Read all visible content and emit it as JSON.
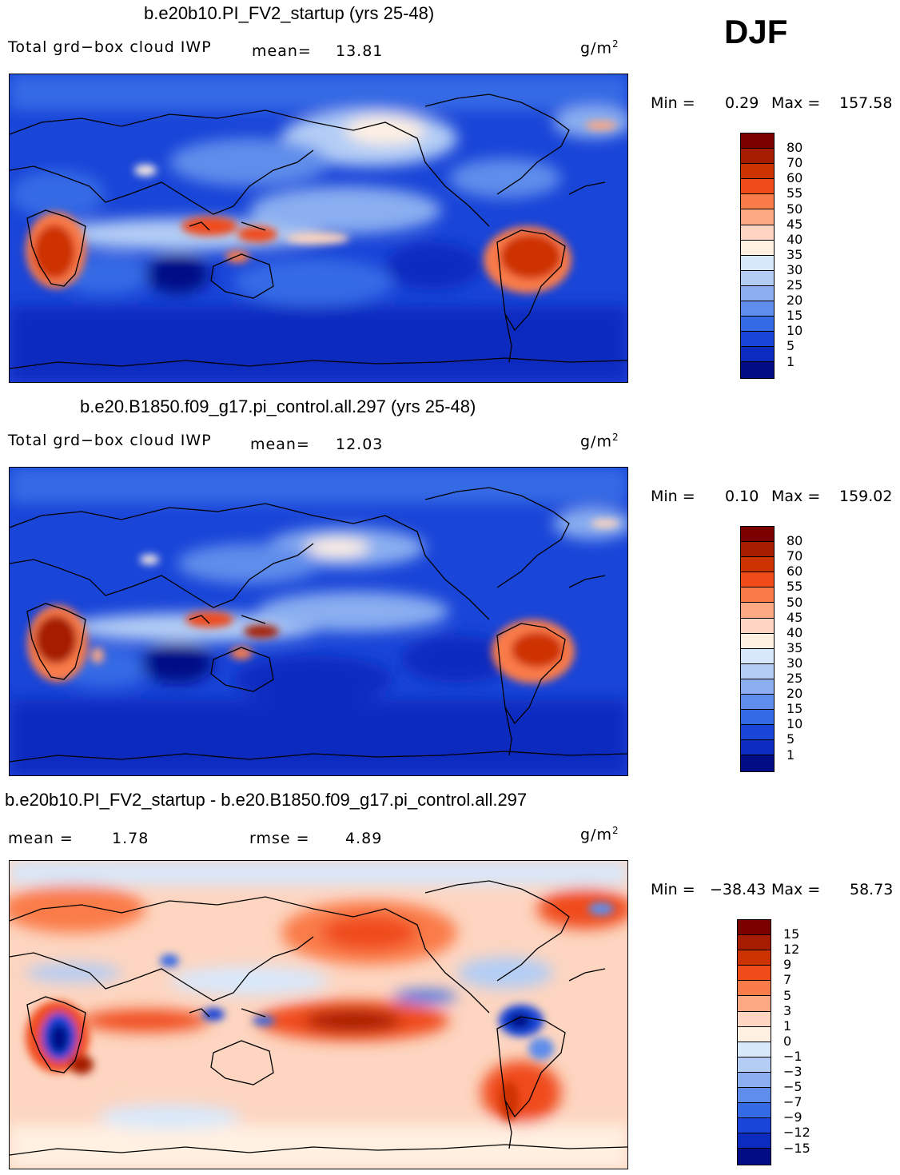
{
  "season": "DJF",
  "panels": [
    {
      "title": "b.e20b10.PI_FV2_startup (yrs 25-48)",
      "variable": "Total grd−box cloud IWP",
      "mean_label": "mean=",
      "mean_value": "13.81",
      "units_base": "g/m",
      "units_exp": "2",
      "min_label": "Min =",
      "min_value": "0.29",
      "max_label": "Max =",
      "max_value": "157.58",
      "colorbar": {
        "colors": [
          "#7a0000",
          "#a61c00",
          "#cd3300",
          "#f04c1a",
          "#fa7b4a",
          "#fca883",
          "#fdd5c0",
          "#fff0e2",
          "#d8e8fb",
          "#b3cdf5",
          "#8aaef0",
          "#5e8deb",
          "#356ae5",
          "#1945d8",
          "#0b2cbf",
          "#020c85"
        ],
        "labels": [
          "80",
          "70",
          "60",
          "55",
          "50",
          "45",
          "40",
          "35",
          "30",
          "25",
          "20",
          "15",
          "10",
          "5",
          "1"
        ]
      }
    },
    {
      "title": "b.e20.B1850.f09_g17.pi_control.all.297 (yrs 25-48)",
      "variable": "Total grd−box cloud IWP",
      "mean_label": "mean=",
      "mean_value": "12.03",
      "units_base": "g/m",
      "units_exp": "2",
      "min_label": "Min =",
      "min_value": "0.10",
      "max_label": "Max =",
      "max_value": "159.02",
      "colorbar": {
        "colors": [
          "#7a0000",
          "#a61c00",
          "#cd3300",
          "#f04c1a",
          "#fa7b4a",
          "#fca883",
          "#fdd5c0",
          "#fff0e2",
          "#d8e8fb",
          "#b3cdf5",
          "#8aaef0",
          "#5e8deb",
          "#356ae5",
          "#1945d8",
          "#0b2cbf",
          "#020c85"
        ],
        "labels": [
          "80",
          "70",
          "60",
          "55",
          "50",
          "45",
          "40",
          "35",
          "30",
          "25",
          "20",
          "15",
          "10",
          "5",
          "1"
        ]
      }
    },
    {
      "title": "b.e20b10.PI_FV2_startup - b.e20.B1850.f09_g17.pi_control.all.297",
      "variable": "",
      "mean_label": "mean =",
      "mean_value": "1.78",
      "rmse_label": "rmse =",
      "rmse_value": "4.89",
      "units_base": "g/m",
      "units_exp": "2",
      "min_label": "Min =",
      "min_value": "−38.43",
      "max_label": "Max =",
      "max_value": "58.73",
      "colorbar": {
        "colors": [
          "#7a0000",
          "#a61c00",
          "#cd3300",
          "#f04c1a",
          "#fa7b4a",
          "#fca883",
          "#fdd5c0",
          "#fff0e2",
          "#d8e8fb",
          "#b3cdf5",
          "#8aaef0",
          "#5e8deb",
          "#356ae5",
          "#1945d8",
          "#0b2cbf",
          "#020c85"
        ],
        "labels": [
          "15",
          "12",
          "9",
          "7",
          "5",
          "3",
          "1",
          "0",
          "−1",
          "−3",
          "−5",
          "−7",
          "−9",
          "−12",
          "−15"
        ]
      }
    }
  ]
}
